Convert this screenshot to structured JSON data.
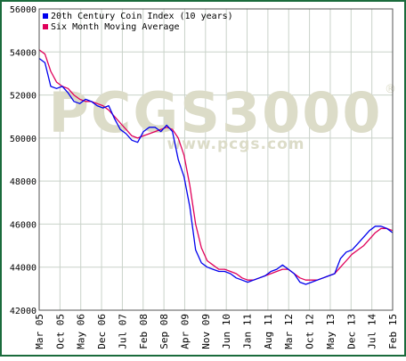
{
  "chart_data": {
    "type": "line",
    "title": "",
    "xlabel": "",
    "ylabel": "",
    "ylim": [
      42000,
      56000
    ],
    "y_ticks": [
      "56000",
      "54000",
      "52000",
      "50000",
      "48000",
      "46000",
      "44000",
      "42000"
    ],
    "y_tick_values": [
      56000,
      54000,
      52000,
      50000,
      48000,
      46000,
      44000,
      42000
    ],
    "x_ticks": [
      "Mar 05",
      "Oct 05",
      "May 06",
      "Dec 06",
      "Jul 07",
      "Feb 08",
      "Sep 08",
      "Apr 09",
      "Nov 09",
      "Jun 10",
      "Jan 11",
      "Aug 11",
      "Mar 12",
      "Oct 12",
      "May 13",
      "Dec 13",
      "Jul 14",
      "Feb 15"
    ],
    "grid": true,
    "legend": "top-left",
    "watermark": {
      "main": "PCGS3000",
      "url": "www.pcgs.com",
      "mark": "®"
    },
    "colors": {
      "frame": "#1a6b3c",
      "grid": "#c9d2c9",
      "series_index": "#0000ee",
      "series_average": "#e0005a",
      "watermark": "#dcdcc8"
    },
    "series": [
      {
        "name": "20th Century Coin Index (10 years)",
        "color": "#0000ee",
        "points": [
          [
            0,
            53700
          ],
          [
            1,
            53500
          ],
          [
            2,
            52400
          ],
          [
            3,
            52300
          ],
          [
            4,
            52400
          ],
          [
            5,
            52100
          ],
          [
            6,
            51700
          ],
          [
            7,
            51600
          ],
          [
            8,
            51800
          ],
          [
            9,
            51700
          ],
          [
            10,
            51500
          ],
          [
            11,
            51400
          ],
          [
            12,
            51500
          ],
          [
            13,
            50900
          ],
          [
            14,
            50400
          ],
          [
            15,
            50200
          ],
          [
            16,
            49900
          ],
          [
            17,
            49800
          ],
          [
            18,
            50300
          ],
          [
            19,
            50500
          ],
          [
            20,
            50500
          ],
          [
            21,
            50300
          ],
          [
            22,
            50600
          ],
          [
            23,
            50300
          ],
          [
            24,
            49000
          ],
          [
            25,
            48200
          ],
          [
            26,
            46800
          ],
          [
            27,
            44800
          ],
          [
            28,
            44200
          ],
          [
            29,
            44000
          ],
          [
            30,
            43900
          ],
          [
            31,
            43800
          ],
          [
            32,
            43800
          ],
          [
            33,
            43700
          ],
          [
            34,
            43500
          ],
          [
            35,
            43400
          ],
          [
            36,
            43300
          ],
          [
            37,
            43400
          ],
          [
            38,
            43500
          ],
          [
            39,
            43600
          ],
          [
            40,
            43800
          ],
          [
            41,
            43900
          ],
          [
            42,
            44100
          ],
          [
            43,
            43900
          ],
          [
            44,
            43700
          ],
          [
            45,
            43300
          ],
          [
            46,
            43200
          ],
          [
            47,
            43300
          ],
          [
            48,
            43400
          ],
          [
            49,
            43500
          ],
          [
            50,
            43600
          ],
          [
            51,
            43700
          ],
          [
            52,
            44400
          ],
          [
            53,
            44700
          ],
          [
            54,
            44800
          ],
          [
            55,
            45100
          ],
          [
            56,
            45400
          ],
          [
            57,
            45700
          ],
          [
            58,
            45900
          ],
          [
            59,
            45900
          ],
          [
            60,
            45800
          ],
          [
            61,
            45600
          ]
        ]
      },
      {
        "name": "Six Month Moving Average",
        "color": "#e0005a",
        "points": [
          [
            0,
            54100
          ],
          [
            1,
            53900
          ],
          [
            2,
            53100
          ],
          [
            3,
            52600
          ],
          [
            4,
            52400
          ],
          [
            5,
            52300
          ],
          [
            6,
            52000
          ],
          [
            7,
            51800
          ],
          [
            8,
            51700
          ],
          [
            9,
            51700
          ],
          [
            10,
            51600
          ],
          [
            11,
            51500
          ],
          [
            12,
            51300
          ],
          [
            13,
            51000
          ],
          [
            14,
            50700
          ],
          [
            15,
            50400
          ],
          [
            16,
            50100
          ],
          [
            17,
            50000
          ],
          [
            18,
            50100
          ],
          [
            19,
            50200
          ],
          [
            20,
            50300
          ],
          [
            21,
            50400
          ],
          [
            22,
            50500
          ],
          [
            23,
            50400
          ],
          [
            24,
            50000
          ],
          [
            25,
            49200
          ],
          [
            26,
            47800
          ],
          [
            27,
            46000
          ],
          [
            28,
            44900
          ],
          [
            29,
            44300
          ],
          [
            30,
            44100
          ],
          [
            31,
            43900
          ],
          [
            32,
            43900
          ],
          [
            33,
            43800
          ],
          [
            34,
            43700
          ],
          [
            35,
            43500
          ],
          [
            36,
            43400
          ],
          [
            37,
            43400
          ],
          [
            38,
            43500
          ],
          [
            39,
            43600
          ],
          [
            40,
            43700
          ],
          [
            41,
            43800
          ],
          [
            42,
            43900
          ],
          [
            43,
            43900
          ],
          [
            44,
            43700
          ],
          [
            45,
            43500
          ],
          [
            46,
            43400
          ],
          [
            47,
            43400
          ],
          [
            48,
            43400
          ],
          [
            49,
            43500
          ],
          [
            50,
            43600
          ],
          [
            51,
            43700
          ],
          [
            52,
            44000
          ],
          [
            53,
            44300
          ],
          [
            54,
            44600
          ],
          [
            55,
            44800
          ],
          [
            56,
            45000
          ],
          [
            57,
            45300
          ],
          [
            58,
            45600
          ],
          [
            59,
            45800
          ],
          [
            60,
            45800
          ],
          [
            61,
            45700
          ]
        ]
      }
    ]
  }
}
